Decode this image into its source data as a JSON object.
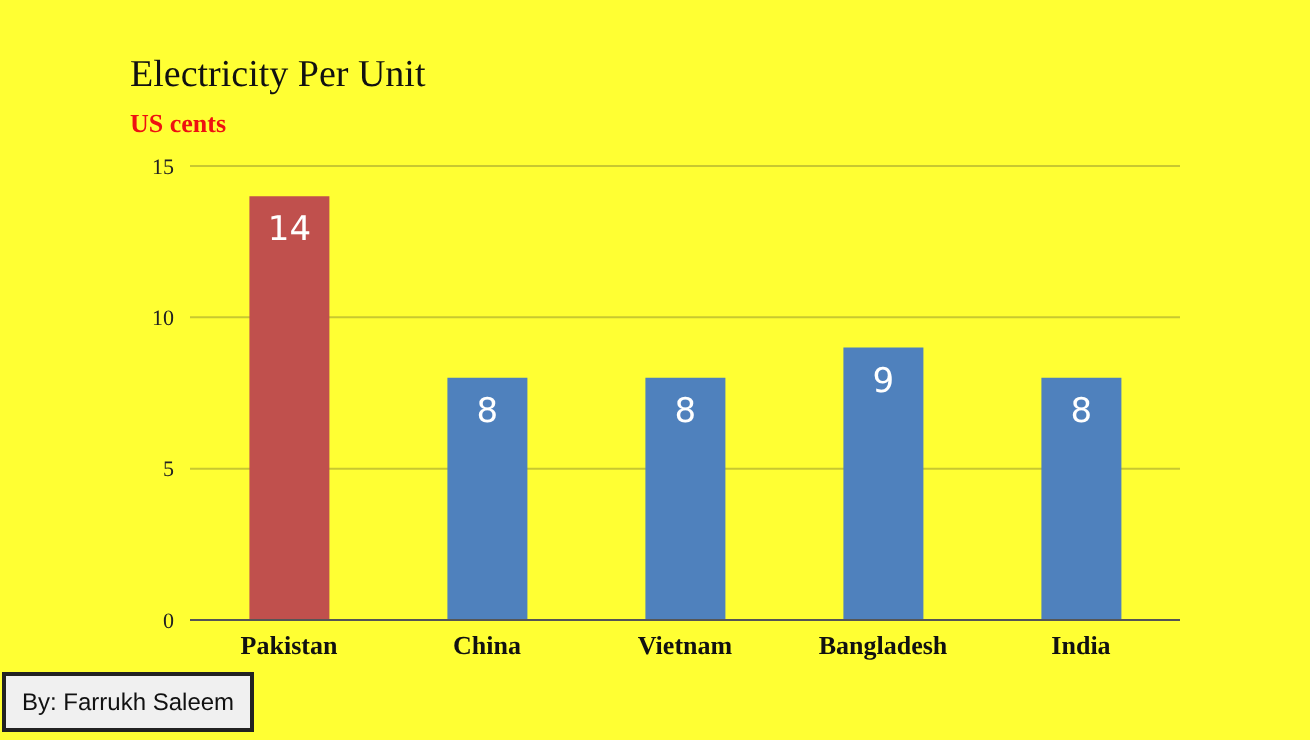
{
  "chart_data": {
    "type": "bar",
    "title": "Electricity Per Unit",
    "subtitle": "US cents",
    "categories": [
      "Pakistan",
      "China",
      "Vietnam",
      "Bangladesh",
      "India"
    ],
    "values": [
      14,
      8,
      8,
      9,
      8
    ],
    "colors": [
      "#c0504d",
      "#4f81bd",
      "#4f81bd",
      "#4f81bd",
      "#4f81bd"
    ],
    "ylim": [
      0,
      15
    ],
    "yticks": [
      0,
      5,
      10,
      15
    ],
    "grid": "y",
    "data_labels": true,
    "annotations": [
      "By: Farrukh Saleem"
    ]
  }
}
